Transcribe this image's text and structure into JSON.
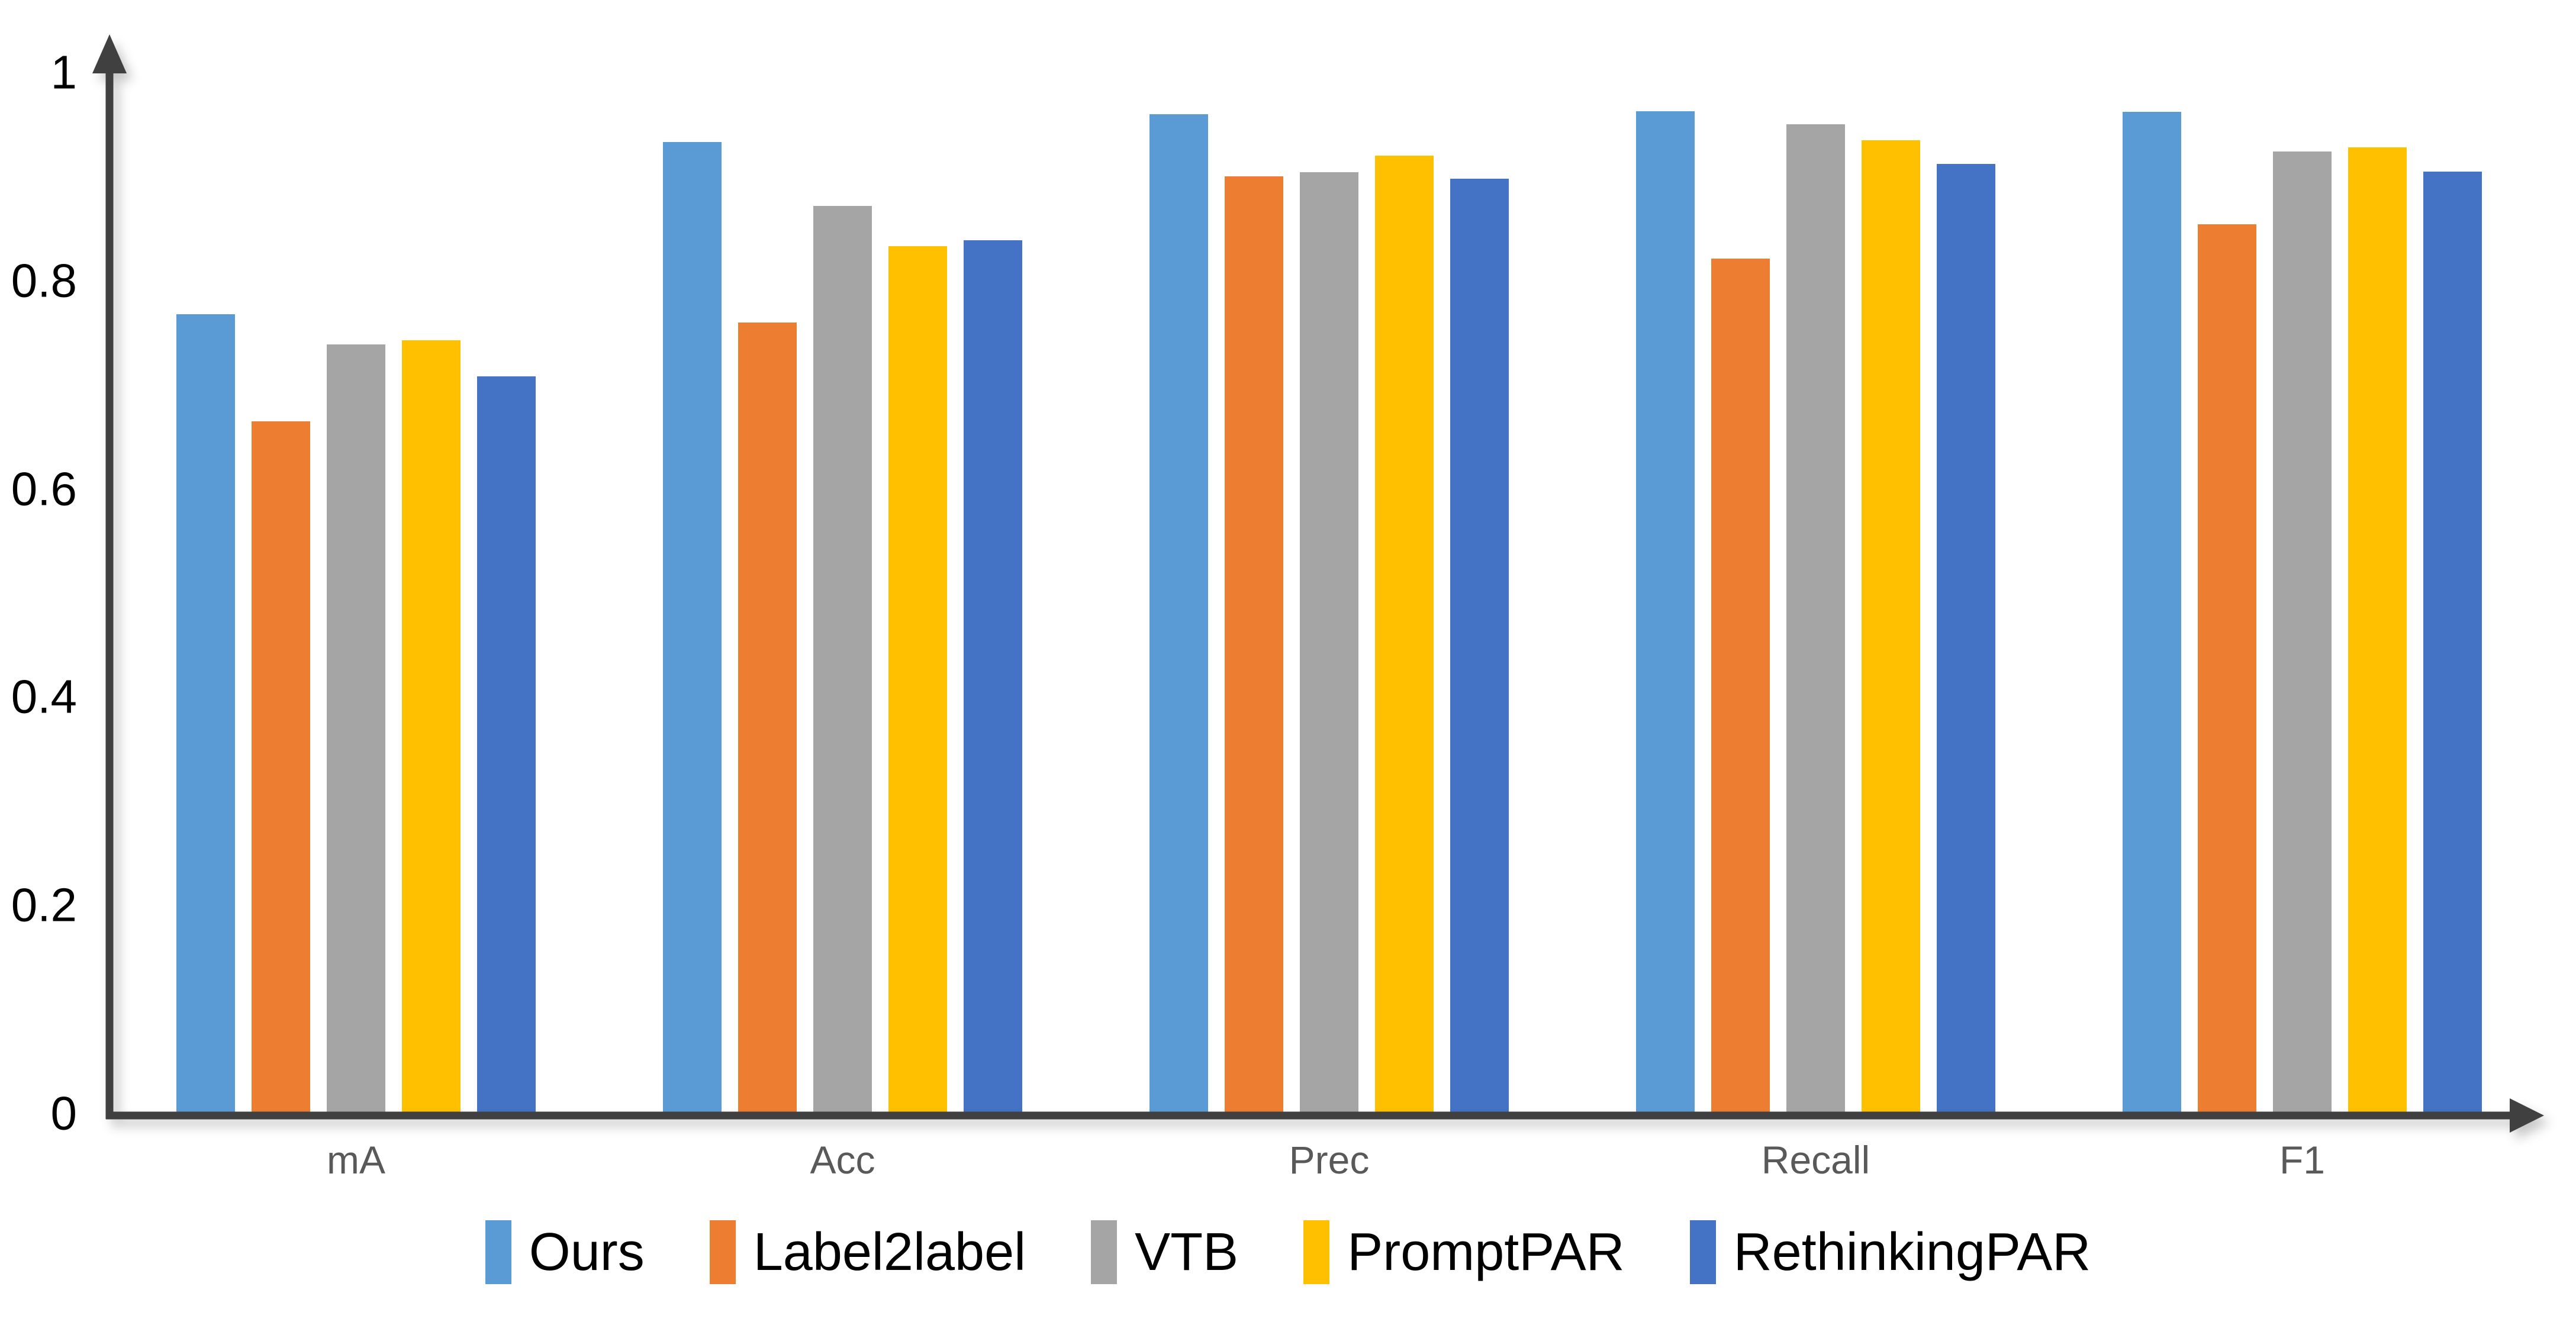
{
  "chart_data": {
    "type": "bar",
    "title": "",
    "categories": [
      "mA",
      "Acc",
      "Prec",
      "Recall",
      "F1"
    ],
    "series": [
      {
        "name": "Ours",
        "color": "#5B9BD5",
        "values": [
          0.77,
          0.935,
          0.962,
          0.965,
          0.964
        ]
      },
      {
        "name": "Label2label",
        "color": "#ED7D31",
        "values": [
          0.667,
          0.762,
          0.902,
          0.823,
          0.856
        ]
      },
      {
        "name": "VTB",
        "color": "#A5A5A5",
        "values": [
          0.741,
          0.874,
          0.906,
          0.952,
          0.926
        ]
      },
      {
        "name": "PromptPAR",
        "color": "#FFC000",
        "values": [
          0.745,
          0.835,
          0.922,
          0.937,
          0.93
        ]
      },
      {
        "name": "RethinkingPAR",
        "color": "#4472C4",
        "values": [
          0.71,
          0.841,
          0.9,
          0.914,
          0.907
        ]
      }
    ],
    "ylim": [
      0,
      1
    ],
    "yticks": [
      {
        "value": 0,
        "label": "0"
      },
      {
        "value": 0.2,
        "label": "0.2"
      },
      {
        "value": 0.4,
        "label": "0.4"
      },
      {
        "value": 0.6,
        "label": "0.6"
      },
      {
        "value": 0.8,
        "label": "0.8"
      },
      {
        "value": 1,
        "label": "1"
      }
    ],
    "grid": false,
    "legend_position": "bottom",
    "axis_arrows": true,
    "axis_color": "#404040",
    "tick_label_color": "#000000",
    "category_label_color": "#595959",
    "legend_text_color": "#000000",
    "background": "#FFFFFF"
  }
}
